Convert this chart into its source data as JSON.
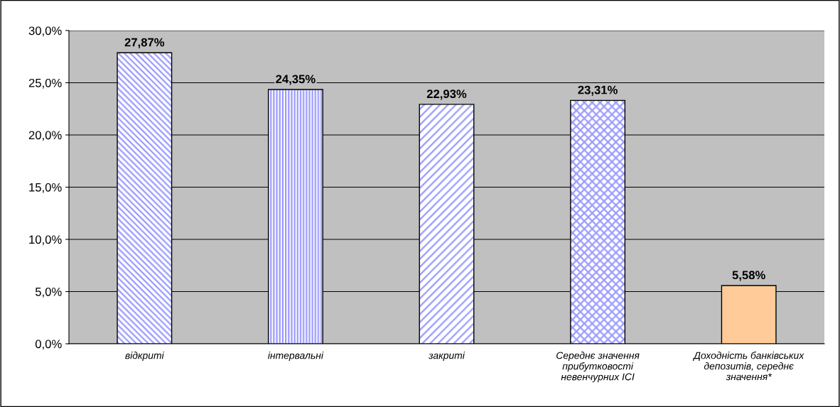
{
  "chart_data": {
    "type": "bar",
    "categories": [
      "відкриті",
      "інтервальні",
      "закриті",
      "Середнє значення прибутковості невенчурних ІСІ",
      "Доходність банківських депозитів, середнє значення*"
    ],
    "values": [
      27.87,
      24.35,
      22.93,
      23.31,
      5.58
    ],
    "colors": [
      "#9999ff",
      "#9999ff",
      "#9999ff",
      "#9999ff",
      "#ffcc99"
    ],
    "value_labels": [
      "27,87%",
      "24,35%",
      "22,93%",
      "23,31%",
      "5,58%"
    ],
    "ylim": [
      0,
      30
    ],
    "yticks": [
      {
        "value": 0,
        "label": "0,0%"
      },
      {
        "value": 5,
        "label": "5,0%"
      },
      {
        "value": 10,
        "label": "10,0%"
      },
      {
        "value": 15,
        "label": "15,0%"
      },
      {
        "value": 20,
        "label": "20,0%"
      },
      {
        "value": 25,
        "label": "25,0%"
      },
      {
        "value": 30,
        "label": "30,0%"
      }
    ],
    "grid": "y"
  }
}
